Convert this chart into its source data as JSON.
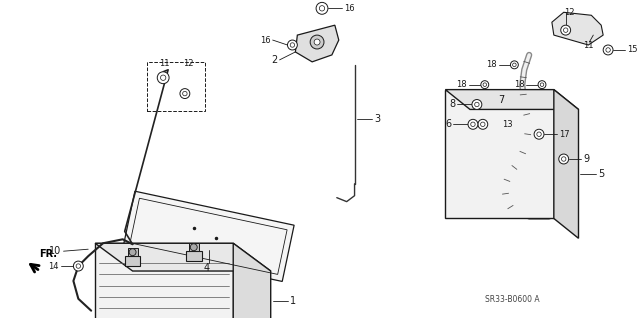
{
  "bg_color": "#ffffff",
  "line_color": "#1a1a1a",
  "diagram_code": "SR33-B0600 A",
  "figsize": [
    6.4,
    3.19
  ],
  "dpi": 100
}
